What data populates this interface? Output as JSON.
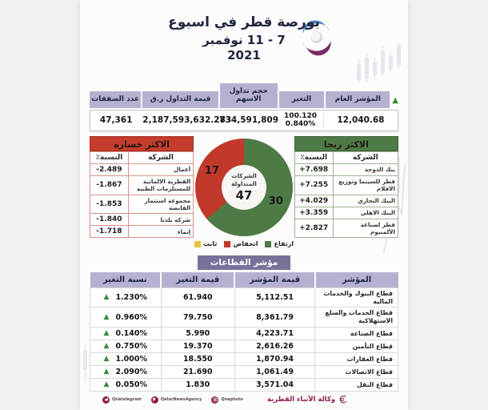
{
  "header": {
    "title": "بورصة قطر في اسبوع",
    "date_line": "7 - 11 نوفمبر",
    "year": "2021"
  },
  "summary": {
    "columns": [
      {
        "label": "المؤشر العام",
        "value": "12,040.68"
      },
      {
        "label": "التغير",
        "value": "100.120",
        "value2": "0.840%"
      },
      {
        "label": "حجم تداول الاسهم",
        "value": "734,591,809"
      },
      {
        "label": "قيمة التداول ر.ق",
        "value": "2,187,593,632.283"
      },
      {
        "label": "عدد الصفقات",
        "value": "47,361"
      }
    ]
  },
  "gainers": {
    "title": "الاكثر ربحا",
    "col_company": "الشركة",
    "col_pct": "النسبة٪",
    "rows": [
      {
        "company": "بنك الدوحة",
        "pct": "+7.698"
      },
      {
        "company": "قطر للسينما وتوزيع الافلام",
        "pct": "+7.255"
      },
      {
        "company": "البنك التجاري",
        "pct": "+4.029"
      },
      {
        "company": "البنك الاهلي",
        "pct": "+3.359"
      },
      {
        "company": "قطر لصناعة الألمنيوم",
        "pct": "+2.827"
      }
    ]
  },
  "losers": {
    "title": "الاكثر خساره",
    "col_company": "الشركة",
    "col_pct": "النسبة٪",
    "rows": [
      {
        "company": "أعمال",
        "pct": "-2.489"
      },
      {
        "company": "القطرية الالمانية للمستلزمات الطبية",
        "pct": "-1.867"
      },
      {
        "company": "مجموعة استثمار القابضة",
        "pct": "-1.853"
      },
      {
        "company": "شركة بلدنا",
        "pct": "-1.840"
      },
      {
        "company": "إنماء",
        "pct": "-1.718"
      }
    ]
  },
  "chart_data": {
    "type": "pie",
    "title": "الشركات المتداولة",
    "center_label": "الشركات المتداولة",
    "center_value": "47",
    "total": 47,
    "segments": [
      {
        "label": "ارتفاع",
        "value": 30,
        "color": "#4e7a45"
      },
      {
        "label": "انخفاض",
        "value": 17,
        "color": "#c0392b"
      },
      {
        "label": "ثابت",
        "value": 0,
        "color": "#e8c33f"
      }
    ],
    "legend_position": "bottom"
  },
  "sectors": {
    "badge": "مؤشر القطاعات",
    "columns": [
      "المؤشر",
      "قيمة المؤشر",
      "قيمة التغير",
      "نسبة التغير"
    ],
    "rows": [
      {
        "name": "قطاع البنوك والخدمات المالية",
        "index_value": "5,112.51",
        "change_value": "61.940",
        "change_pct": "1.230%",
        "direction": "up"
      },
      {
        "name": "قطاع الخدمات والسلع الاستهلاكية",
        "index_value": "8,361.79",
        "change_value": "79.750",
        "change_pct": "0.960%",
        "direction": "up"
      },
      {
        "name": "قطاع الصناعة",
        "index_value": "4,223.71",
        "change_value": "5.990",
        "change_pct": "0.140%",
        "direction": "up"
      },
      {
        "name": "قطاع التأمين",
        "index_value": "2,616.26",
        "change_value": "19.370",
        "change_pct": "0.750%",
        "direction": "up"
      },
      {
        "name": "قطاع العقارات",
        "index_value": "1,870.94",
        "change_value": "18.550",
        "change_pct": "1.000%",
        "direction": "up"
      },
      {
        "name": "قطاع الاتصالات",
        "index_value": "1,061.49",
        "change_value": "21.690",
        "change_pct": "2.090%",
        "direction": "up"
      },
      {
        "name": "قطاع النقل",
        "index_value": "3,571.04",
        "change_value": "1.830",
        "change_pct": "0.050%",
        "direction": "up"
      }
    ]
  },
  "footer": {
    "social": [
      {
        "icon": "telegram-icon",
        "handle": "Qnatelegram"
      },
      {
        "icon": "twitter-icon",
        "handle": "QatarNewsAgency"
      },
      {
        "icon": "instagram-icon",
        "handle": "Qnaphoto"
      }
    ],
    "agency_name": "وكالة الأنباء القطرية"
  },
  "colors": {
    "up_green": "#4e7a45",
    "down_red": "#c43c2d",
    "flat_yellow": "#e8c33f",
    "header_purple": "#b6b1d1",
    "badge_purple": "#7b7099",
    "brand_maroon": "#8e1e4e",
    "triangle_green": "#3c8a3c"
  }
}
